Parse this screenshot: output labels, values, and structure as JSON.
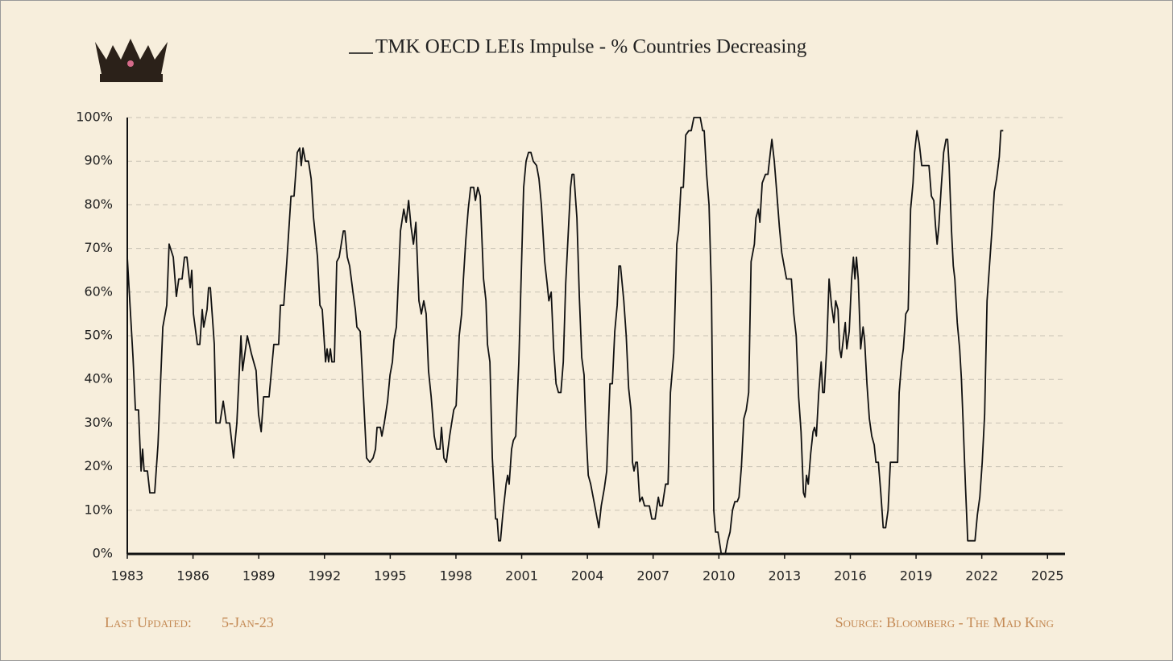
{
  "chart_data": {
    "type": "line",
    "x": [
      1983.0,
      1983.26,
      1983.37,
      1983.51,
      1983.63,
      1983.7,
      1983.77,
      1983.92,
      1984.03,
      1984.25,
      1984.4,
      1984.62,
      1984.8,
      1984.91,
      1985.1,
      1985.24,
      1985.35,
      1985.5,
      1985.61,
      1985.72,
      1985.87,
      1985.94,
      1986.02,
      1986.2,
      1986.31,
      1986.42,
      1986.49,
      1986.64,
      1986.71,
      1986.79,
      1986.97,
      1987.05,
      1987.23,
      1987.38,
      1987.52,
      1987.67,
      1987.85,
      1988.0,
      1988.19,
      1988.26,
      1988.37,
      1988.48,
      1988.66,
      1988.88,
      1988.99,
      1989.11,
      1989.22,
      1989.47,
      1989.69,
      1989.91,
      1989.99,
      1990.14,
      1990.28,
      1990.47,
      1990.61,
      1990.76,
      1990.87,
      1990.94,
      1991.02,
      1991.13,
      1991.27,
      1991.39,
      1991.5,
      1991.68,
      1991.79,
      1991.9,
      1992.05,
      1992.12,
      1992.19,
      1992.27,
      1992.34,
      1992.45,
      1992.56,
      1992.67,
      1992.86,
      1992.93,
      1993.04,
      1993.15,
      1993.3,
      1993.41,
      1993.48,
      1993.63,
      1993.78,
      1993.92,
      1994.07,
      1994.22,
      1994.33,
      1994.4,
      1994.55,
      1994.62,
      1994.73,
      1994.88,
      1994.99,
      1995.1,
      1995.17,
      1995.28,
      1995.47,
      1995.62,
      1995.73,
      1995.84,
      1995.95,
      1996.06,
      1996.17,
      1996.31,
      1996.42,
      1996.53,
      1996.64,
      1996.75,
      1996.87,
      1997.01,
      1997.12,
      1997.27,
      1997.34,
      1997.45,
      1997.56,
      1997.71,
      1997.9,
      1998.01,
      1998.15,
      1998.26,
      1998.34,
      1998.45,
      1998.56,
      1998.67,
      1998.81,
      1998.89,
      1999.0,
      1999.11,
      1999.26,
      1999.37,
      1999.44,
      1999.55,
      1999.66,
      1999.81,
      1999.88,
      1999.95,
      2000.03,
      2000.14,
      2000.29,
      2000.36,
      2000.43,
      2000.54,
      2000.62,
      2000.73,
      2000.87,
      2000.98,
      2001.09,
      2001.2,
      2001.31,
      2001.42,
      2001.53,
      2001.68,
      2001.79,
      2001.9,
      2002.05,
      2002.16,
      2002.24,
      2002.35,
      2002.46,
      2002.57,
      2002.68,
      2002.79,
      2002.9,
      2003.01,
      2003.23,
      2003.3,
      2003.38,
      2003.52,
      2003.63,
      2003.74,
      2003.85,
      2003.93,
      2004.04,
      2004.15,
      2004.3,
      2004.41,
      2004.52,
      2004.63,
      2004.77,
      2004.88,
      2005.03,
      2005.14,
      2005.25,
      2005.36,
      2005.44,
      2005.51,
      2005.66,
      2005.77,
      2005.88,
      2005.99,
      2006.06,
      2006.13,
      2006.21,
      2006.28,
      2006.39,
      2006.5,
      2006.61,
      2006.83,
      2006.94,
      2007.09,
      2007.24,
      2007.31,
      2007.42,
      2007.57,
      2007.68,
      2007.79,
      2007.94,
      2008.08,
      2008.16,
      2008.27,
      2008.38,
      2008.49,
      2008.63,
      2008.74,
      2008.86,
      2009.15,
      2009.26,
      2009.33,
      2009.44,
      2009.55,
      2009.66,
      2009.77,
      2009.85,
      2009.96,
      2010.11,
      2010.29,
      2010.4,
      2010.51,
      2010.62,
      2010.73,
      2010.84,
      2010.92,
      2011.03,
      2011.14,
      2011.25,
      2011.36,
      2011.47,
      2011.62,
      2011.69,
      2011.8,
      2011.87,
      2011.98,
      2012.13,
      2012.24,
      2012.35,
      2012.42,
      2012.53,
      2012.64,
      2012.76,
      2012.87,
      2012.98,
      2013.09,
      2013.31,
      2013.42,
      2013.53,
      2013.64,
      2013.75,
      2013.86,
      2013.93,
      2014.0,
      2014.08,
      2014.19,
      2014.3,
      2014.37,
      2014.45,
      2014.56,
      2014.67,
      2014.74,
      2014.81,
      2014.92,
      2015.03,
      2015.14,
      2015.25,
      2015.33,
      2015.44,
      2015.51,
      2015.58,
      2015.7,
      2015.77,
      2015.84,
      2015.95,
      2016.06,
      2016.14,
      2016.21,
      2016.28,
      2016.36,
      2016.47,
      2016.58,
      2016.65,
      2016.76,
      2016.87,
      2016.98,
      2017.09,
      2017.17,
      2017.28,
      2017.39,
      2017.5,
      2017.61,
      2017.72,
      2017.83,
      2018.16,
      2018.23,
      2018.34,
      2018.42,
      2018.53,
      2018.64,
      2018.75,
      2018.86,
      2018.93,
      2019.04,
      2019.15,
      2019.26,
      2019.59,
      2019.7,
      2019.81,
      2019.89,
      2019.96,
      2020.04,
      2020.15,
      2020.26,
      2020.37,
      2020.44,
      2020.51,
      2020.62,
      2020.7,
      2020.77,
      2020.88,
      2020.99,
      2021.07,
      2021.14,
      2021.25,
      2021.36,
      2021.69,
      2021.8,
      2021.91,
      2022.02,
      2022.13,
      2022.24,
      2022.35,
      2022.46,
      2022.57,
      2022.68,
      2022.8,
      2022.87,
      2022.98
    ],
    "series": [
      {
        "name": "TMK OECD LEIs Impulse - % Countries Decreasing",
        "color": "#111111",
        "values": [
          68,
          45,
          33,
          33,
          19,
          24,
          19,
          19,
          14,
          14,
          25,
          52,
          57,
          71,
          68,
          59,
          63,
          63,
          68,
          68,
          61,
          65,
          55,
          48,
          48,
          56,
          52,
          56,
          61,
          61,
          48,
          30,
          30,
          35,
          30,
          30,
          22,
          30,
          50,
          42,
          46,
          50,
          46,
          42,
          32,
          28,
          36,
          36,
          48,
          48,
          57,
          57,
          67,
          82,
          82,
          92,
          93,
          89,
          93,
          90,
          90,
          86,
          77,
          68,
          57,
          56,
          44,
          47,
          44,
          47,
          44,
          44,
          67,
          68,
          74,
          74,
          68,
          66,
          60,
          56,
          52,
          51,
          36,
          22,
          21,
          22,
          24,
          29,
          29,
          27,
          30,
          35,
          41,
          44,
          49,
          52,
          74,
          79,
          76,
          81,
          75,
          71,
          76,
          58,
          55,
          58,
          55,
          42,
          36,
          27,
          24,
          24,
          29,
          22,
          21,
          27,
          33,
          34,
          50,
          55,
          63,
          72,
          79,
          84,
          84,
          81,
          84,
          82,
          63,
          58,
          48,
          44,
          22,
          8,
          8,
          3,
          3,
          9,
          16,
          18,
          16,
          24,
          26,
          27,
          44,
          64,
          84,
          90,
          92,
          92,
          90,
          89,
          86,
          80,
          67,
          62,
          58,
          60,
          47,
          39,
          37,
          37,
          44,
          62,
          84,
          87,
          87,
          77,
          59,
          45,
          41,
          29,
          18,
          16,
          12,
          9,
          6,
          11,
          15,
          19,
          39,
          39,
          51,
          57,
          66,
          66,
          58,
          50,
          38,
          33,
          21,
          19,
          21,
          21,
          12,
          13,
          11,
          11,
          8,
          8,
          13,
          11,
          11,
          16,
          16,
          37,
          46,
          71,
          74,
          84,
          84,
          96,
          97,
          97,
          100,
          100,
          97,
          97,
          87,
          80,
          60,
          10,
          5,
          5,
          0,
          0,
          3,
          5,
          10,
          12,
          12,
          13,
          20,
          31,
          33,
          37,
          67,
          71,
          77,
          79,
          76,
          85,
          87,
          87,
          92,
          95,
          90,
          83,
          75,
          69,
          66,
          63,
          63,
          55,
          50,
          36,
          28,
          14,
          13,
          18,
          16,
          23,
          28,
          29,
          27,
          37,
          44,
          37,
          37,
          47,
          63,
          57,
          53,
          58,
          56,
          47,
          45,
          50,
          53,
          47,
          51,
          63,
          68,
          63,
          68,
          63,
          47,
          52,
          49,
          39,
          31,
          27,
          25,
          21,
          21,
          14,
          6,
          6,
          10,
          21,
          21,
          37,
          44,
          47,
          55,
          56,
          79,
          85,
          92,
          97,
          94,
          89,
          89,
          82,
          81,
          75,
          71,
          75,
          84,
          92,
          95,
          95,
          89,
          74,
          66,
          63,
          53,
          47,
          40,
          31,
          16,
          3,
          3,
          9,
          13,
          21,
          32,
          58,
          66,
          74,
          83,
          86,
          91,
          97,
          97
        ]
      }
    ],
    "xlim": [
      1983,
      2025.8
    ],
    "xticks": [
      1983,
      1986,
      1989,
      1992,
      1995,
      1998,
      2001,
      2004,
      2007,
      2010,
      2013,
      2016,
      2019,
      2022,
      2025
    ],
    "ylim": [
      0,
      100
    ],
    "yticks": [
      {
        "value": 0,
        "label": "0%"
      },
      {
        "value": 10,
        "label": "10%"
      },
      {
        "value": 20,
        "label": "20%"
      },
      {
        "value": 30,
        "label": "30%"
      },
      {
        "value": 40,
        "label": "40%"
      },
      {
        "value": 50,
        "label": "50%"
      },
      {
        "value": 60,
        "label": "60%"
      },
      {
        "value": 70,
        "label": "70%"
      },
      {
        "value": 80,
        "label": "80%"
      },
      {
        "value": 90,
        "label": "90%"
      },
      {
        "value": 100,
        "label": "100%"
      }
    ],
    "grid": true,
    "footer_left_label": "Last Updated:",
    "footer_left_value": "5-Jan-23",
    "footer_right": "Source: Bloomberg - The Mad King"
  }
}
